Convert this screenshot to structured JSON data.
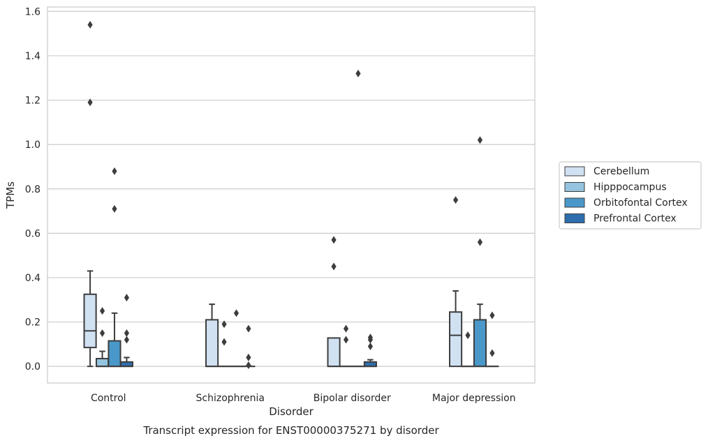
{
  "chart_data": {
    "type": "boxplot",
    "title": "Transcript expression for ENST00000375271 by disorder",
    "xlabel": "Disorder",
    "ylabel": "TPMs",
    "ylim": [
      -0.075,
      1.62
    ],
    "yticks": [
      "0.0",
      "0.2",
      "0.4",
      "0.6",
      "0.8",
      "1.0",
      "1.2",
      "1.4",
      "1.6"
    ],
    "categories": [
      "Control",
      "Schizophrenia",
      "Bipolar disorder",
      "Major depression"
    ],
    "grid": "horizontal",
    "legend_position": "right",
    "series": [
      {
        "name": "Cerebellum",
        "color": "#d0e1f2",
        "boxes": [
          {
            "whislo": 0.0,
            "q1": 0.085,
            "med": 0.16,
            "q3": 0.325,
            "whishi": 0.43,
            "fliers": [
              1.19,
              1.54
            ]
          },
          {
            "whislo": 0.0,
            "q1": 0.0,
            "med": 0.0,
            "q3": 0.21,
            "whishi": 0.28,
            "fliers": []
          },
          {
            "whislo": 0.0,
            "q1": 0.0,
            "med": 0.0,
            "q3": 0.128,
            "whishi": 0.128,
            "fliers": [
              0.45,
              0.57
            ]
          },
          {
            "whislo": 0.0,
            "q1": 0.0,
            "med": 0.14,
            "q3": 0.245,
            "whishi": 0.34,
            "fliers": [
              0.75
            ]
          }
        ]
      },
      {
        "name": "Hipppocampus",
        "color": "#94c4df",
        "boxes": [
          {
            "whislo": 0.0,
            "q1": 0.0,
            "med": 0.0,
            "q3": 0.035,
            "whishi": 0.068,
            "fliers": [
              0.15,
              0.25
            ]
          },
          {
            "whislo": 0.0,
            "q1": 0.0,
            "med": 0.0,
            "q3": 0.0,
            "whishi": 0.0,
            "fliers": [
              0.11,
              0.19
            ]
          },
          {
            "whislo": 0.0,
            "q1": 0.0,
            "med": 0.0,
            "q3": 0.0,
            "whishi": 0.0,
            "fliers": [
              0.12,
              0.17
            ]
          },
          {
            "whislo": 0.0,
            "q1": 0.0,
            "med": 0.0,
            "q3": 0.0,
            "whishi": 0.0,
            "fliers": [
              0.14
            ]
          }
        ]
      },
      {
        "name": "Orbitofontal Cortex",
        "color": "#4a98c9",
        "boxes": [
          {
            "whislo": 0.0,
            "q1": 0.0,
            "med": 0.0,
            "q3": 0.115,
            "whishi": 0.24,
            "fliers": [
              0.71,
              0.88
            ]
          },
          {
            "whislo": 0.0,
            "q1": 0.0,
            "med": 0.0,
            "q3": 0.0,
            "whishi": 0.0,
            "fliers": [
              0.24
            ]
          },
          {
            "whislo": 0.0,
            "q1": 0.0,
            "med": 0.0,
            "q3": 0.0,
            "whishi": 0.0,
            "fliers": [
              1.32
            ]
          },
          {
            "whislo": 0.0,
            "q1": 0.0,
            "med": 0.0,
            "q3": 0.21,
            "whishi": 0.28,
            "fliers": [
              0.56,
              1.02
            ]
          }
        ]
      },
      {
        "name": "Prefrontal Cortex",
        "color": "#2e6eae",
        "boxes": [
          {
            "whislo": 0.0,
            "q1": 0.0,
            "med": 0.0,
            "q3": 0.02,
            "whishi": 0.04,
            "fliers": [
              0.12,
              0.15,
              0.31
            ]
          },
          {
            "whislo": 0.0,
            "q1": 0.0,
            "med": 0.0,
            "q3": 0.0,
            "whishi": 0.0,
            "fliers": [
              0.005,
              0.04,
              0.17
            ]
          },
          {
            "whislo": 0.0,
            "q1": 0.0,
            "med": 0.0,
            "q3": 0.02,
            "whishi": 0.03,
            "fliers": [
              0.09,
              0.12,
              0.13
            ]
          },
          {
            "whislo": 0.0,
            "q1": 0.0,
            "med": 0.0,
            "q3": 0.0,
            "whishi": 0.0,
            "fliers": [
              0.06,
              0.23
            ]
          }
        ]
      }
    ]
  }
}
